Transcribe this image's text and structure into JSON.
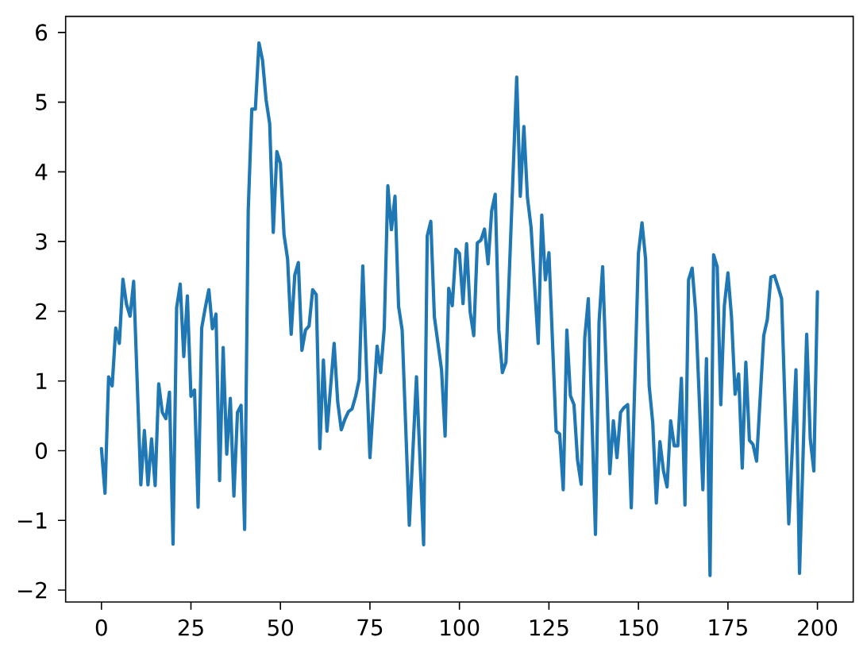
{
  "chart_data": {
    "type": "line",
    "color": "#1f77b4",
    "x": [
      0,
      1,
      2,
      3,
      4,
      5,
      6,
      7,
      8,
      9,
      11,
      12,
      13,
      14,
      15,
      16,
      17,
      18,
      19,
      20,
      21,
      22,
      23,
      24,
      25,
      26,
      27,
      28,
      29,
      30,
      31,
      32,
      33,
      34,
      35,
      36,
      37,
      38,
      39,
      40,
      41,
      42,
      43,
      44,
      45,
      46,
      47,
      48,
      49,
      50,
      51,
      52,
      53,
      54,
      55,
      56,
      57,
      58,
      59,
      60,
      61,
      62,
      63,
      65,
      66,
      67,
      68,
      69,
      70,
      71,
      72,
      73,
      74,
      75,
      76,
      77,
      78,
      79,
      80,
      81,
      82,
      83,
      84,
      86,
      88,
      90,
      91,
      92,
      93,
      94,
      95,
      96,
      97,
      98,
      99,
      100,
      101,
      102,
      103,
      104,
      105,
      106,
      107,
      108,
      109,
      110,
      111,
      112,
      113,
      116,
      117,
      118,
      119,
      120,
      121,
      122,
      123,
      124,
      125,
      127,
      128,
      129,
      130,
      131,
      132,
      133,
      134,
      135,
      136,
      138,
      139,
      140,
      142,
      143,
      144,
      145,
      146,
      147,
      148,
      150,
      151,
      152,
      153,
      154,
      155,
      156,
      157,
      158,
      159,
      160,
      161,
      162,
      163,
      164,
      165,
      166,
      167,
      168,
      169,
      170,
      171,
      172,
      173,
      174,
      175,
      176,
      177,
      178,
      179,
      180,
      181,
      182,
      183,
      185,
      186,
      187,
      188,
      189,
      190,
      192,
      194,
      195,
      197,
      198,
      199,
      200
    ],
    "values": [
      0.03,
      -0.61,
      1.06,
      0.93,
      1.76,
      1.54,
      2.46,
      2.1,
      1.93,
      2.43,
      -0.49,
      0.29,
      -0.49,
      0.17,
      -0.5,
      0.96,
      0.55,
      0.46,
      0.84,
      -1.34,
      2.05,
      2.39,
      1.35,
      2.22,
      0.78,
      0.87,
      -0.81,
      1.76,
      2.05,
      2.31,
      1.75,
      1.96,
      -0.43,
      1.48,
      -0.05,
      0.75,
      -0.65,
      0.55,
      0.65,
      -1.13,
      3.44,
      4.9,
      4.9,
      5.85,
      5.6,
      5.03,
      4.69,
      3.13,
      4.29,
      4.12,
      3.1,
      2.75,
      1.67,
      2.52,
      2.7,
      1.44,
      1.73,
      1.79,
      2.31,
      2.24,
      0.03,
      1.3,
      0.28,
      1.54,
      0.7,
      0.3,
      0.45,
      0.56,
      0.6,
      0.78,
      1.02,
      2.65,
      1.23,
      -0.1,
      0.7,
      1.5,
      1.12,
      1.76,
      3.8,
      3.17,
      3.65,
      2.07,
      1.73,
      -1.07,
      1.06,
      -1.35,
      3.08,
      3.29,
      1.92,
      1.54,
      1.16,
      0.21,
      2.33,
      2.08,
      2.89,
      2.83,
      2.11,
      2.97,
      1.99,
      1.65,
      2.98,
      3.02,
      3.18,
      2.68,
      3.44,
      3.68,
      1.73,
      1.12,
      1.27,
      5.36,
      3.65,
      4.65,
      3.63,
      3.21,
      2.37,
      1.54,
      3.38,
      2.45,
      2.84,
      0.28,
      0.24,
      -0.56,
      1.73,
      0.79,
      0.66,
      -0.14,
      -0.48,
      1.61,
      2.18,
      -1.2,
      1.84,
      2.64,
      -0.33,
      0.43,
      -0.1,
      0.55,
      0.62,
      0.66,
      -0.82,
      2.83,
      3.27,
      2.75,
      0.93,
      0.4,
      -0.75,
      0.13,
      -0.29,
      -0.52,
      0.43,
      0.07,
      0.07,
      1.04,
      -0.78,
      2.45,
      2.62,
      1.99,
      0.74,
      -0.56,
      1.32,
      -1.79,
      2.81,
      2.64,
      0.66,
      2.08,
      2.55,
      1.92,
      0.81,
      1.1,
      -0.25,
      1.27,
      0.15,
      0.09,
      -0.15,
      1.65,
      1.88,
      2.49,
      2.51,
      2.35,
      2.18,
      -1.05,
      1.16,
      -1.76,
      1.67,
      0.17,
      -0.29,
      2.28
    ],
    "xlim": [
      -10,
      210
    ],
    "ylim": [
      -2.17,
      6.23
    ],
    "xticks": [
      0,
      25,
      50,
      75,
      100,
      125,
      150,
      175,
      200
    ],
    "yticks": [
      {
        "value": -2,
        "label": "−2"
      },
      {
        "value": -1,
        "label": "−1"
      },
      0,
      1,
      2,
      3,
      4,
      5,
      6
    ]
  }
}
